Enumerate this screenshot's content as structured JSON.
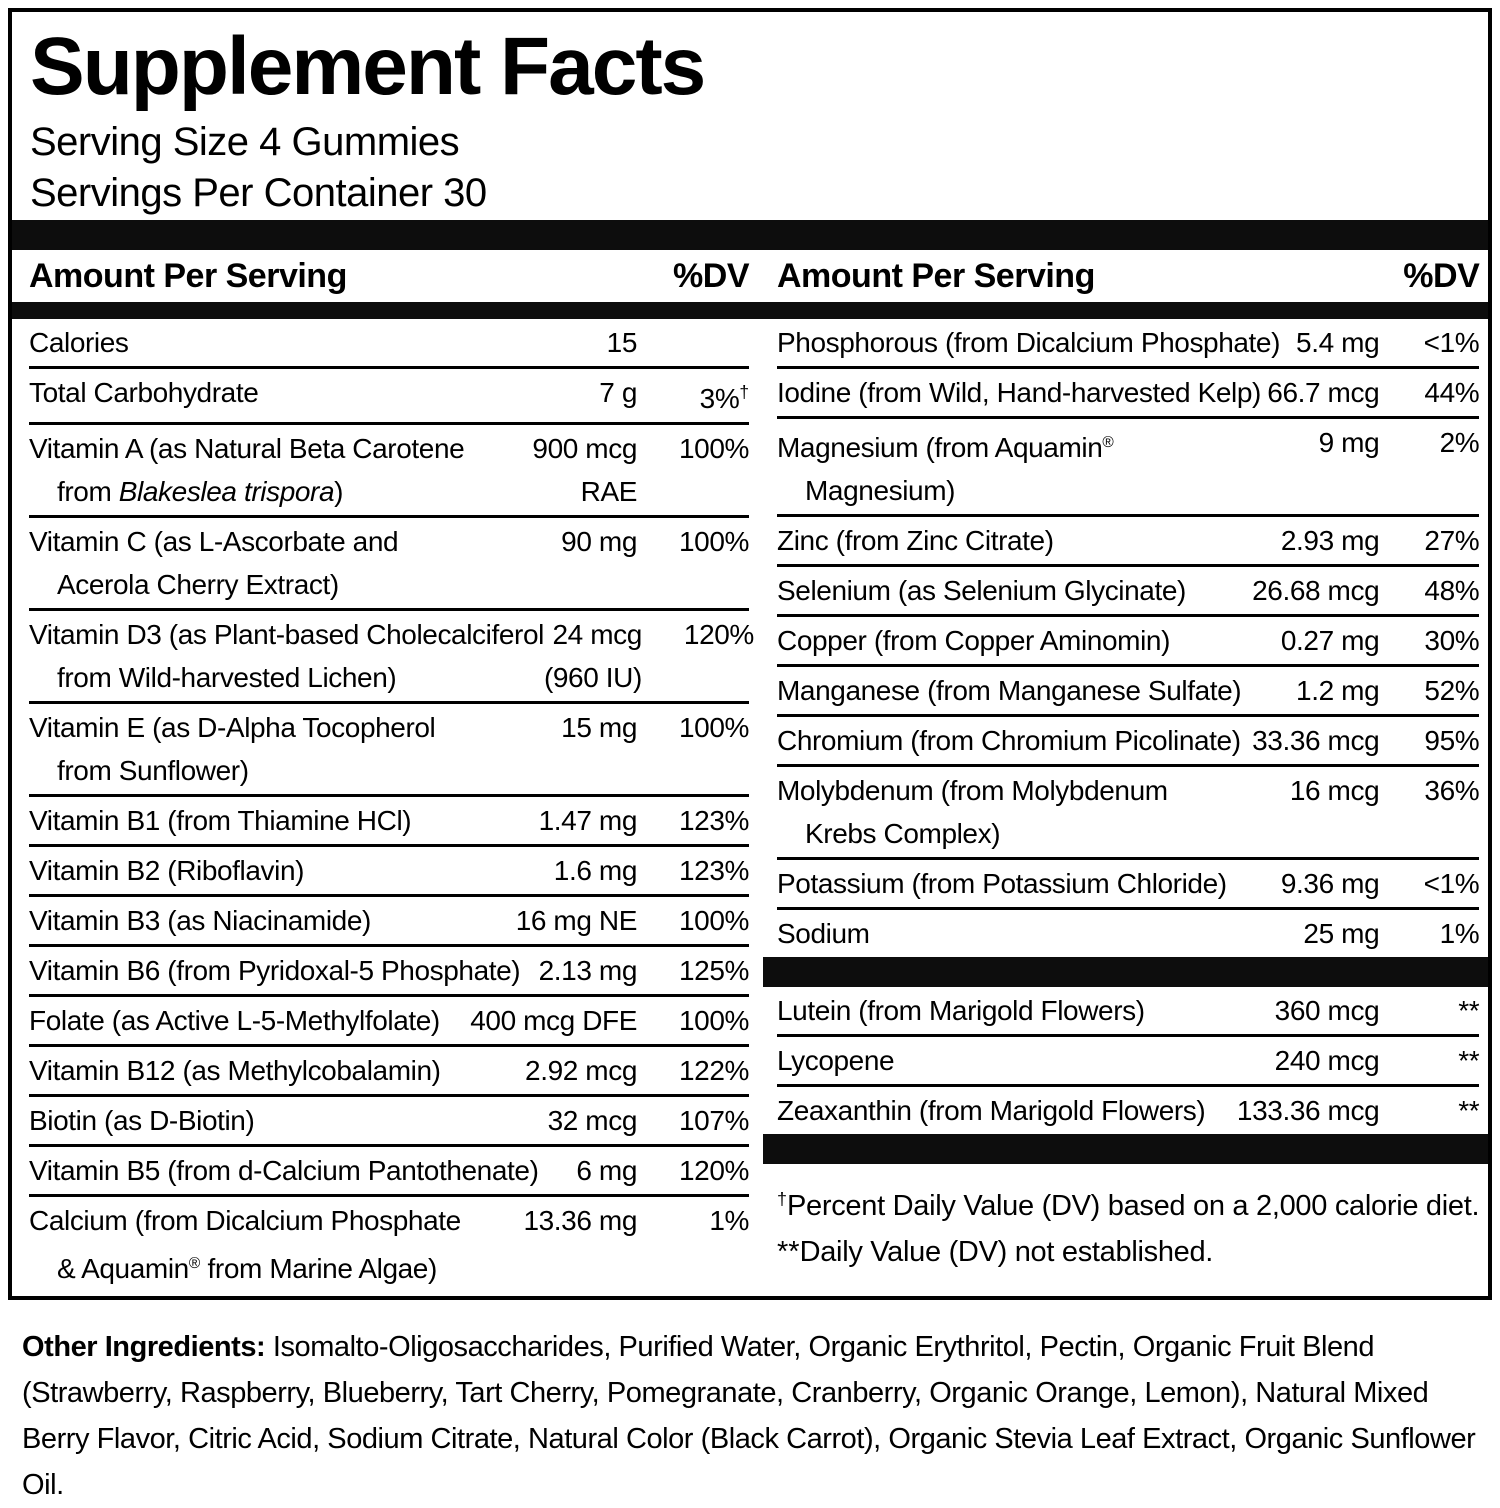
{
  "title": "Supplement Facts",
  "serving_size": "Serving Size 4 Gummies",
  "servings_per_container": "Servings Per Container 30",
  "colors": {
    "text": "#000000",
    "bar": "#0d0d0d",
    "background": "#ffffff"
  },
  "columns": {
    "left": {
      "header": {
        "amount_label": "Amount Per Serving",
        "dv_label": "%DV"
      },
      "rows": [
        {
          "name": [
            [
              {
                "t": "Calories"
              }
            ]
          ],
          "amount": [
            "15"
          ],
          "dv": ""
        },
        {
          "name": [
            [
              {
                "t": "Total Carbohydrate"
              }
            ]
          ],
          "amount": [
            "7 g"
          ],
          "dv": "3%",
          "dvsup": "†"
        },
        {
          "name": [
            [
              {
                "t": "Vitamin A (as Natural Beta Carotene"
              }
            ],
            [
              {
                "t": "from "
              },
              {
                "t": "Blakeslea trispora",
                "i": true
              },
              {
                "t": ")"
              }
            ]
          ],
          "amount": [
            "900 mcg",
            "RAE"
          ],
          "dv": "100%"
        },
        {
          "name": [
            [
              {
                "t": "Vitamin C (as L-Ascorbate and"
              }
            ],
            [
              {
                "t": "Acerola Cherry Extract)"
              }
            ]
          ],
          "amount": [
            "90 mg"
          ],
          "dv": "100%"
        },
        {
          "name": [
            [
              {
                "t": "Vitamin D3 (as Plant-based Cholecalciferol"
              }
            ],
            [
              {
                "t": "from Wild-harvested Lichen)"
              }
            ]
          ],
          "amount": [
            "24 mcg",
            "(960 IU)"
          ],
          "dv": "120%"
        },
        {
          "name": [
            [
              {
                "t": "Vitamin E (as D-Alpha Tocopherol"
              }
            ],
            [
              {
                "t": "from Sunflower)"
              }
            ]
          ],
          "amount": [
            "15 mg"
          ],
          "dv": "100%"
        },
        {
          "name": [
            [
              {
                "t": "Vitamin B1 (from Thiamine HCl)"
              }
            ]
          ],
          "amount": [
            "1.47 mg"
          ],
          "dv": "123%"
        },
        {
          "name": [
            [
              {
                "t": "Vitamin B2 (Riboflavin)"
              }
            ]
          ],
          "amount": [
            "1.6 mg"
          ],
          "dv": "123%"
        },
        {
          "name": [
            [
              {
                "t": "Vitamin B3 (as Niacinamide)"
              }
            ]
          ],
          "amount": [
            "16 mg NE"
          ],
          "dv": "100%"
        },
        {
          "name": [
            [
              {
                "t": "Vitamin B6 (from Pyridoxal-5 Phosphate)"
              }
            ]
          ],
          "amount": [
            "2.13 mg"
          ],
          "dv": "125%"
        },
        {
          "name": [
            [
              {
                "t": "Folate (as Active L-5-Methylfolate)"
              }
            ]
          ],
          "amount": [
            "400 mcg DFE"
          ],
          "dv": "100%"
        },
        {
          "name": [
            [
              {
                "t": "Vitamin B12 (as Methylcobalamin)"
              }
            ]
          ],
          "amount": [
            "2.92 mcg"
          ],
          "dv": "122%"
        },
        {
          "name": [
            [
              {
                "t": "Biotin (as D-Biotin)"
              }
            ]
          ],
          "amount": [
            "32 mcg"
          ],
          "dv": "107%"
        },
        {
          "name": [
            [
              {
                "t": "Vitamin B5 (from d-Calcium Pantothenate)"
              }
            ]
          ],
          "amount": [
            "6 mg"
          ],
          "dv": "120%"
        },
        {
          "name": [
            [
              {
                "t": "Calcium (from Dicalcium Phosphate"
              }
            ],
            [
              {
                "t": "& Aquamin"
              },
              {
                "t": "®",
                "s": true
              },
              {
                "t": " from Marine Algae)"
              }
            ]
          ],
          "amount": [
            "13.36 mg"
          ],
          "dv": "1%"
        }
      ]
    },
    "right": {
      "header": {
        "amount_label": "Amount Per Serving",
        "dv_label": "%DV"
      },
      "group1": [
        {
          "name": [
            [
              {
                "t": "Phosphorous (from Dicalcium Phosphate)"
              }
            ]
          ],
          "amount": [
            "5.4 mg"
          ],
          "dv": "<1%"
        },
        {
          "name": [
            [
              {
                "t": "Iodine (from Wild, Hand-harvested Kelp)"
              }
            ]
          ],
          "amount": [
            "66.7 mcg"
          ],
          "dv": "44%"
        },
        {
          "name": [
            [
              {
                "t": "Magnesium (from Aquamin"
              },
              {
                "t": "®",
                "s": true
              }
            ],
            [
              {
                "t": "Magnesium)"
              }
            ]
          ],
          "amount": [
            "9 mg"
          ],
          "dv": "2%"
        },
        {
          "name": [
            [
              {
                "t": "Zinc (from Zinc Citrate)"
              }
            ]
          ],
          "amount": [
            "2.93 mg"
          ],
          "dv": "27%"
        },
        {
          "name": [
            [
              {
                "t": "Selenium (as Selenium Glycinate)"
              }
            ]
          ],
          "amount": [
            "26.68 mcg"
          ],
          "dv": "48%"
        },
        {
          "name": [
            [
              {
                "t": "Copper (from Copper Aminomin)"
              }
            ]
          ],
          "amount": [
            "0.27 mg"
          ],
          "dv": "30%"
        },
        {
          "name": [
            [
              {
                "t": "Manganese (from Manganese Sulfate)"
              }
            ]
          ],
          "amount": [
            "1.2 mg"
          ],
          "dv": "52%"
        },
        {
          "name": [
            [
              {
                "t": "Chromium (from Chromium Picolinate)"
              }
            ]
          ],
          "amount": [
            "33.36 mcg"
          ],
          "dv": "95%"
        },
        {
          "name": [
            [
              {
                "t": "Molybdenum (from Molybdenum"
              }
            ],
            [
              {
                "t": "Krebs Complex)"
              }
            ]
          ],
          "amount": [
            "16 mcg"
          ],
          "dv": "36%"
        },
        {
          "name": [
            [
              {
                "t": "Potassium (from Potassium Chloride)"
              }
            ]
          ],
          "amount": [
            "9.36 mg"
          ],
          "dv": "<1%"
        },
        {
          "name": [
            [
              {
                "t": "Sodium"
              }
            ]
          ],
          "amount": [
            "25 mg"
          ],
          "dv": "1%"
        }
      ],
      "group2": [
        {
          "name": [
            [
              {
                "t": "Lutein (from Marigold Flowers)"
              }
            ]
          ],
          "amount": [
            "360 mcg"
          ],
          "dv": "**"
        },
        {
          "name": [
            [
              {
                "t": "Lycopene"
              }
            ]
          ],
          "amount": [
            "240 mcg"
          ],
          "dv": "**"
        },
        {
          "name": [
            [
              {
                "t": "Zeaxanthin (from Marigold Flowers)"
              }
            ]
          ],
          "amount": [
            "133.36 mcg"
          ],
          "dv": "**"
        }
      ],
      "footnotes": [
        {
          "pre": "†",
          "sup": true,
          "text": "Percent Daily Value (DV) based on a 2,000 calorie diet."
        },
        {
          "pre": "**",
          "sup": false,
          "text": "Daily Value (DV) not established."
        }
      ]
    }
  },
  "other_ingredients": {
    "label": "Other Ingredients:",
    "text": "Isomalto-Oligosaccharides, Purified Water, Organic Erythritol, Pectin, Organic Fruit Blend (Strawberry, Raspberry, Blueberry, Tart Cherry, Pomegranate, Cranberry, Organic Orange, Lemon), Natural Mixed Berry Flavor, Citric Acid, Sodium Citrate, Natural Color (Black Carrot), Organic Stevia Leaf Extract, Organic Sunflower Oil."
  }
}
